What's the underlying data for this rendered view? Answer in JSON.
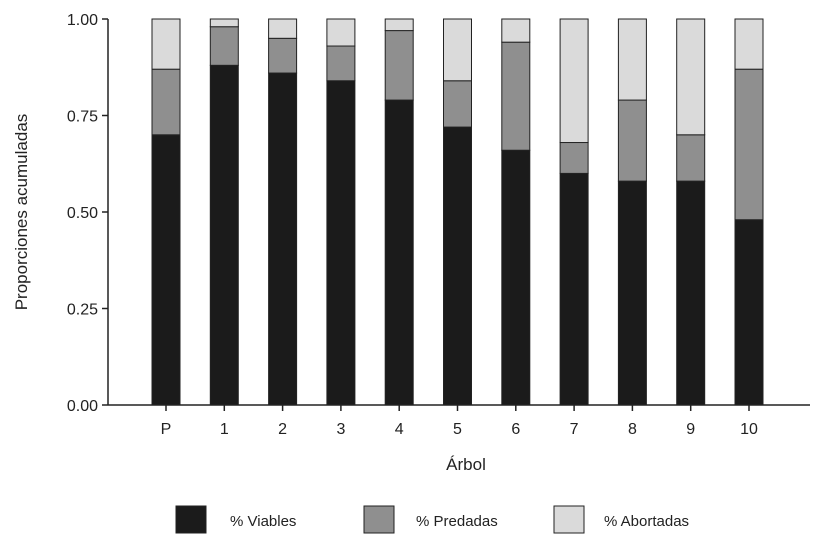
{
  "chart_data": {
    "type": "bar",
    "stacked": true,
    "title": "",
    "xlabel": "Árbol",
    "ylabel": "Proporciones acumuladas",
    "ylim": [
      0,
      1
    ],
    "yticks": [
      "0.00",
      "0.25",
      "0.50",
      "0.75",
      "1.00"
    ],
    "categories": [
      "P",
      "1",
      "2",
      "3",
      "4",
      "5",
      "6",
      "7",
      "8",
      "9",
      "10"
    ],
    "series": [
      {
        "name": "% Viables",
        "color": "#1b1b1b",
        "values": [
          0.7,
          0.88,
          0.86,
          0.84,
          0.79,
          0.72,
          0.66,
          0.6,
          0.58,
          0.58,
          0.48
        ]
      },
      {
        "name": "% Predadas",
        "color": "#8f8f8f",
        "values": [
          0.17,
          0.1,
          0.09,
          0.09,
          0.18,
          0.12,
          0.28,
          0.08,
          0.21,
          0.12,
          0.39
        ]
      },
      {
        "name": "% Abortadas",
        "color": "#dadada",
        "values": [
          0.13,
          0.02,
          0.05,
          0.07,
          0.03,
          0.16,
          0.06,
          0.32,
          0.21,
          0.3,
          0.13
        ]
      }
    ],
    "grid": false,
    "legend_position": "bottom"
  }
}
